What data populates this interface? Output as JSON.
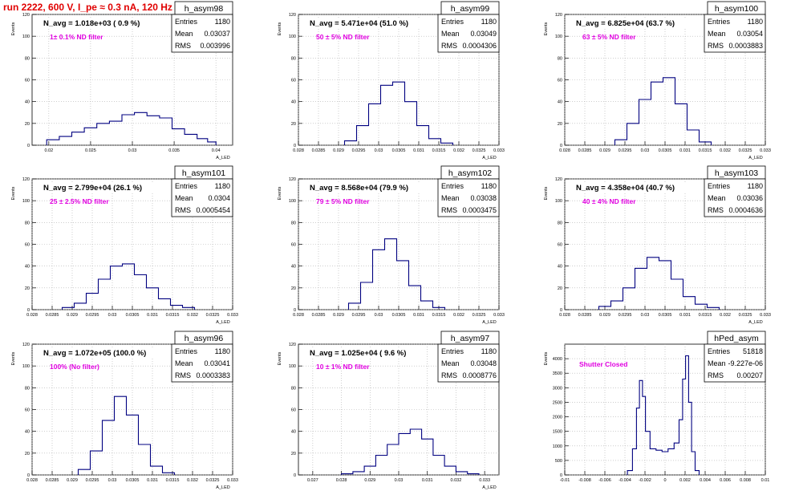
{
  "page_title": "run 2222,   600 V, I_pe ≈ 0.3 nA, 120 Hz",
  "colors": {
    "line": "#000080",
    "annotation": "#e000e0",
    "header": "#e00000"
  },
  "stat_labels": {
    "entries": "Entries",
    "mean": "Mean",
    "rms": "RMS"
  },
  "chart_data": [
    {
      "type": "histogram",
      "name": "h_asym98",
      "header": "N_avg = 1.018e+03 ( 0.9 %)",
      "annotation": "1± 0.1% ND filter",
      "stats": {
        "entries": "1180",
        "mean": "0.03037",
        "rms": "0.003996"
      },
      "ylabel": "Events",
      "xlabel": "A_LED",
      "xlim": [
        0.018,
        0.042
      ],
      "ylim": [
        0,
        120
      ],
      "xticks": [
        0.02,
        0.025,
        0.03,
        0.035,
        0.04
      ],
      "xtick_labels": [
        "0.02",
        "0.025",
        "0.03",
        "0.035",
        "0.04"
      ],
      "yticks": [
        0,
        20,
        40,
        60,
        80,
        100,
        120
      ],
      "x": [
        0.0205,
        0.022,
        0.0235,
        0.025,
        0.0265,
        0.028,
        0.0295,
        0.031,
        0.0325,
        0.034,
        0.0355,
        0.037,
        0.0385,
        0.0395
      ],
      "y": [
        5,
        8,
        12,
        16,
        20,
        22,
        28,
        30,
        27,
        25,
        15,
        10,
        6,
        3
      ]
    },
    {
      "type": "histogram",
      "name": "h_asym99",
      "header": "N_avg = 5.471e+04 (51.0 %)",
      "annotation": "50 ± 5% ND filter",
      "stats": {
        "entries": "1180",
        "mean": "0.03049",
        "rms": "0.0004306"
      },
      "ylabel": "Events",
      "xlabel": "A_LED",
      "xlim": [
        0.028,
        0.033
      ],
      "ylim": [
        0,
        120
      ],
      "xticks": [
        0.028,
        0.0285,
        0.029,
        0.0295,
        0.03,
        0.0305,
        0.031,
        0.0315,
        0.032,
        0.0325,
        0.033
      ],
      "xtick_labels": [
        "0.028",
        "0.0285",
        "0.029",
        "0.0295",
        "0.03",
        "0.0305",
        "0.031",
        "0.0315",
        "0.032",
        "0.0325",
        "0.033"
      ],
      "yticks": [
        0,
        20,
        40,
        60,
        80,
        100,
        120
      ],
      "x": [
        0.0293,
        0.0296,
        0.0299,
        0.0302,
        0.0305,
        0.0308,
        0.0311,
        0.0314,
        0.0317
      ],
      "y": [
        4,
        18,
        38,
        55,
        58,
        40,
        18,
        6,
        2
      ]
    },
    {
      "type": "histogram",
      "name": "h_asym100",
      "header": "N_avg = 6.825e+04 (63.7 %)",
      "annotation": "63 ± 5% ND filter",
      "stats": {
        "entries": "1180",
        "mean": "0.03054",
        "rms": "0.0003883"
      },
      "ylabel": "Events",
      "xlabel": "A_LED",
      "xlim": [
        0.028,
        0.033
      ],
      "ylim": [
        0,
        120
      ],
      "xticks": [
        0.028,
        0.0285,
        0.029,
        0.0295,
        0.03,
        0.0305,
        0.031,
        0.0315,
        0.032,
        0.0325,
        0.033
      ],
      "xtick_labels": [
        "0.028",
        "0.0285",
        "0.029",
        "0.0295",
        "0.03",
        "0.0305",
        "0.031",
        "0.0315",
        "0.032",
        "0.0325",
        "0.033"
      ],
      "yticks": [
        0,
        20,
        40,
        60,
        80,
        100,
        120
      ],
      "x": [
        0.0294,
        0.0297,
        0.03,
        0.0303,
        0.0306,
        0.0309,
        0.0312,
        0.0315
      ],
      "y": [
        5,
        20,
        42,
        58,
        62,
        38,
        14,
        3
      ]
    },
    {
      "type": "histogram",
      "name": "h_asym101",
      "header": "N_avg = 2.799e+04 (26.1 %)",
      "annotation": "25 ± 2.5% ND filter",
      "stats": {
        "entries": "1180",
        "mean": "0.0304",
        "rms": "0.0005454"
      },
      "ylabel": "Events",
      "xlabel": "A_LED",
      "xlim": [
        0.028,
        0.033
      ],
      "ylim": [
        0,
        120
      ],
      "xticks": [
        0.028,
        0.0285,
        0.029,
        0.0295,
        0.03,
        0.0305,
        0.031,
        0.0315,
        0.032,
        0.0325,
        0.033
      ],
      "xtick_labels": [
        "0.028",
        "0.0285",
        "0.029",
        "0.0295",
        "0.03",
        "0.0305",
        "0.031",
        "0.0315",
        "0.032",
        "0.0325",
        "0.033"
      ],
      "yticks": [
        0,
        20,
        40,
        60,
        80,
        100,
        120
      ],
      "x": [
        0.0289,
        0.0292,
        0.0295,
        0.0298,
        0.0301,
        0.0304,
        0.0307,
        0.031,
        0.0313,
        0.0316,
        0.0319
      ],
      "y": [
        2,
        6,
        15,
        28,
        40,
        42,
        32,
        20,
        10,
        4,
        2
      ]
    },
    {
      "type": "histogram",
      "name": "h_asym102",
      "header": "N_avg = 8.568e+04 (79.9 %)",
      "annotation": "79 ± 5% ND filter",
      "stats": {
        "entries": "1180",
        "mean": "0.03038",
        "rms": "0.0003475"
      },
      "ylabel": "Events",
      "xlabel": "A_LED",
      "xlim": [
        0.028,
        0.033
      ],
      "ylim": [
        0,
        120
      ],
      "xticks": [
        0.028,
        0.0285,
        0.029,
        0.0295,
        0.03,
        0.0305,
        0.031,
        0.0315,
        0.032,
        0.0325,
        0.033
      ],
      "xtick_labels": [
        "0.028",
        "0.0285",
        "0.029",
        "0.0295",
        "0.03",
        "0.0305",
        "0.031",
        "0.0315",
        "0.032",
        "0.0325",
        "0.033"
      ],
      "yticks": [
        0,
        20,
        40,
        60,
        80,
        100,
        120
      ],
      "x": [
        0.0294,
        0.0297,
        0.03,
        0.0303,
        0.0306,
        0.0309,
        0.0312,
        0.0315
      ],
      "y": [
        6,
        25,
        55,
        65,
        45,
        22,
        8,
        2
      ]
    },
    {
      "type": "histogram",
      "name": "h_asym103",
      "header": "N_avg = 4.358e+04 (40.7 %)",
      "annotation": "40 ± 4% ND filter",
      "stats": {
        "entries": "1180",
        "mean": "0.03036",
        "rms": "0.0004636"
      },
      "ylabel": "Events",
      "xlabel": "A_LED",
      "xlim": [
        0.028,
        0.033
      ],
      "ylim": [
        0,
        120
      ],
      "xticks": [
        0.028,
        0.0285,
        0.029,
        0.0295,
        0.03,
        0.0305,
        0.031,
        0.0315,
        0.032,
        0.0325,
        0.033
      ],
      "xtick_labels": [
        "0.028",
        "0.0285",
        "0.029",
        "0.0295",
        "0.03",
        "0.0305",
        "0.031",
        "0.0315",
        "0.032",
        "0.0325",
        "0.033"
      ],
      "yticks": [
        0,
        20,
        40,
        60,
        80,
        100,
        120
      ],
      "x": [
        0.029,
        0.0293,
        0.0296,
        0.0299,
        0.0302,
        0.0305,
        0.0308,
        0.0311,
        0.0314,
        0.0317
      ],
      "y": [
        3,
        8,
        20,
        38,
        48,
        45,
        28,
        12,
        5,
        2
      ]
    },
    {
      "type": "histogram",
      "name": "h_asym96",
      "header": "N_avg = 1.072e+05 (100.0 %)",
      "annotation": "100% (No filter)",
      "stats": {
        "entries": "1180",
        "mean": "0.03041",
        "rms": "0.0003383"
      },
      "ylabel": "Events",
      "xlabel": "A_LED",
      "xlim": [
        0.028,
        0.033
      ],
      "ylim": [
        0,
        120
      ],
      "xticks": [
        0.028,
        0.0285,
        0.029,
        0.0295,
        0.03,
        0.0305,
        0.031,
        0.0315,
        0.032,
        0.0325,
        0.033
      ],
      "xtick_labels": [
        "0.028",
        "0.0285",
        "0.029",
        "0.0295",
        "0.03",
        "0.0305",
        "0.031",
        "0.0315",
        "0.032",
        "0.0325",
        "0.033"
      ],
      "yticks": [
        0,
        20,
        40,
        60,
        80,
        100,
        120
      ],
      "x": [
        0.0293,
        0.0296,
        0.0299,
        0.0302,
        0.0305,
        0.0308,
        0.0311,
        0.0314
      ],
      "y": [
        5,
        22,
        50,
        72,
        55,
        28,
        8,
        2
      ]
    },
    {
      "type": "histogram",
      "name": "h_asym97",
      "header": "N_avg = 1.025e+04 ( 9.6 %)",
      "annotation": "10 ± 1% ND filter",
      "stats": {
        "entries": "1180",
        "mean": "0.03048",
        "rms": "0.0008776"
      },
      "ylabel": "Events",
      "xlabel": "A_LED",
      "xlim": [
        0.0265,
        0.0335
      ],
      "ylim": [
        0,
        120
      ],
      "xticks": [
        0.027,
        0.028,
        0.029,
        0.03,
        0.031,
        0.032,
        0.033
      ],
      "xtick_labels": [
        "0.027",
        "0.028",
        "0.029",
        "0.03",
        "0.031",
        "0.032",
        "0.033"
      ],
      "yticks": [
        0,
        20,
        40,
        60,
        80,
        100,
        120
      ],
      "x": [
        0.0282,
        0.0286,
        0.029,
        0.0294,
        0.0298,
        0.0302,
        0.0306,
        0.031,
        0.0314,
        0.0318,
        0.0322,
        0.0326
      ],
      "y": [
        1,
        3,
        8,
        18,
        28,
        38,
        42,
        33,
        18,
        8,
        3,
        1
      ]
    },
    {
      "type": "histogram",
      "name": "hPed_asym",
      "header": "",
      "annotation": "Shutter Closed",
      "stats": {
        "entries": "51818",
        "mean": "-9.227e-06",
        "rms": "0.00207"
      },
      "ylabel": "Events",
      "xlabel": "",
      "xlim": [
        -0.01,
        0.01
      ],
      "ylim": [
        0,
        4500
      ],
      "xticks": [
        -0.01,
        -0.008,
        -0.006,
        -0.004,
        -0.002,
        0,
        0.002,
        0.004,
        0.006,
        0.008,
        0.01
      ],
      "xtick_labels": [
        "-0.01",
        "-0.008",
        "-0.006",
        "-0.004",
        "-0.002",
        "0",
        "0.002",
        "0.004",
        "0.006",
        "0.008",
        "0.01"
      ],
      "yticks": [
        0,
        500,
        1000,
        1500,
        2000,
        2500,
        3000,
        3500,
        4000
      ],
      "x": [
        -0.0035,
        -0.003,
        -0.0027,
        -0.0024,
        -0.0021,
        -0.0018,
        -0.0012,
        -0.0006,
        0,
        0.0006,
        0.0012,
        0.0016,
        0.0019,
        0.0022,
        0.0025,
        0.0028,
        0.0032
      ],
      "y": [
        150,
        900,
        2300,
        3250,
        2700,
        1500,
        900,
        850,
        800,
        900,
        1100,
        1900,
        3300,
        4100,
        2500,
        800,
        150
      ]
    }
  ]
}
